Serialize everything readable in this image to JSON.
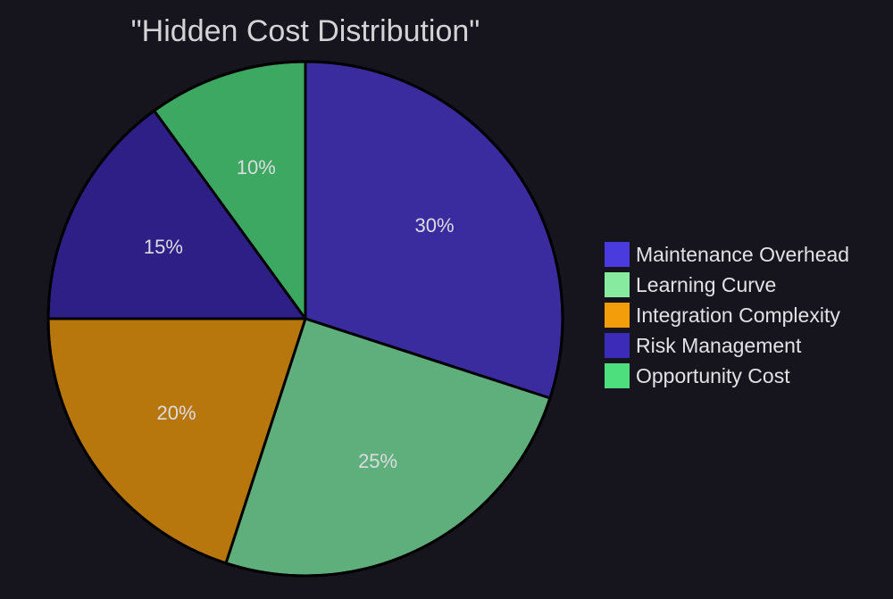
{
  "chart_data": {
    "type": "pie",
    "title": "\"Hidden Cost Distribution\"",
    "legend_position": "right",
    "slices": [
      {
        "label": "Maintenance Overhead",
        "value": 30,
        "display": "30%",
        "color": "#3a2b9e",
        "legend_color": "#4a3bdf"
      },
      {
        "label": "Learning Curve",
        "value": 25,
        "display": "25%",
        "color": "#5faf7d",
        "legend_color": "#86ea9f"
      },
      {
        "label": "Integration Complexity",
        "value": 20,
        "display": "20%",
        "color": "#b8770c",
        "legend_color": "#f39d0b"
      },
      {
        "label": "Risk Management",
        "value": 15,
        "display": "15%",
        "color": "#2d1f86",
        "legend_color": "#3b2bb8"
      },
      {
        "label": "Opportunity Cost",
        "value": 10,
        "display": "10%",
        "color": "#3ca862",
        "legend_color": "#4ddf7e"
      }
    ]
  },
  "colors": {
    "background": "#16151d",
    "slice_border": "#000000",
    "text": "#dcdce0"
  }
}
